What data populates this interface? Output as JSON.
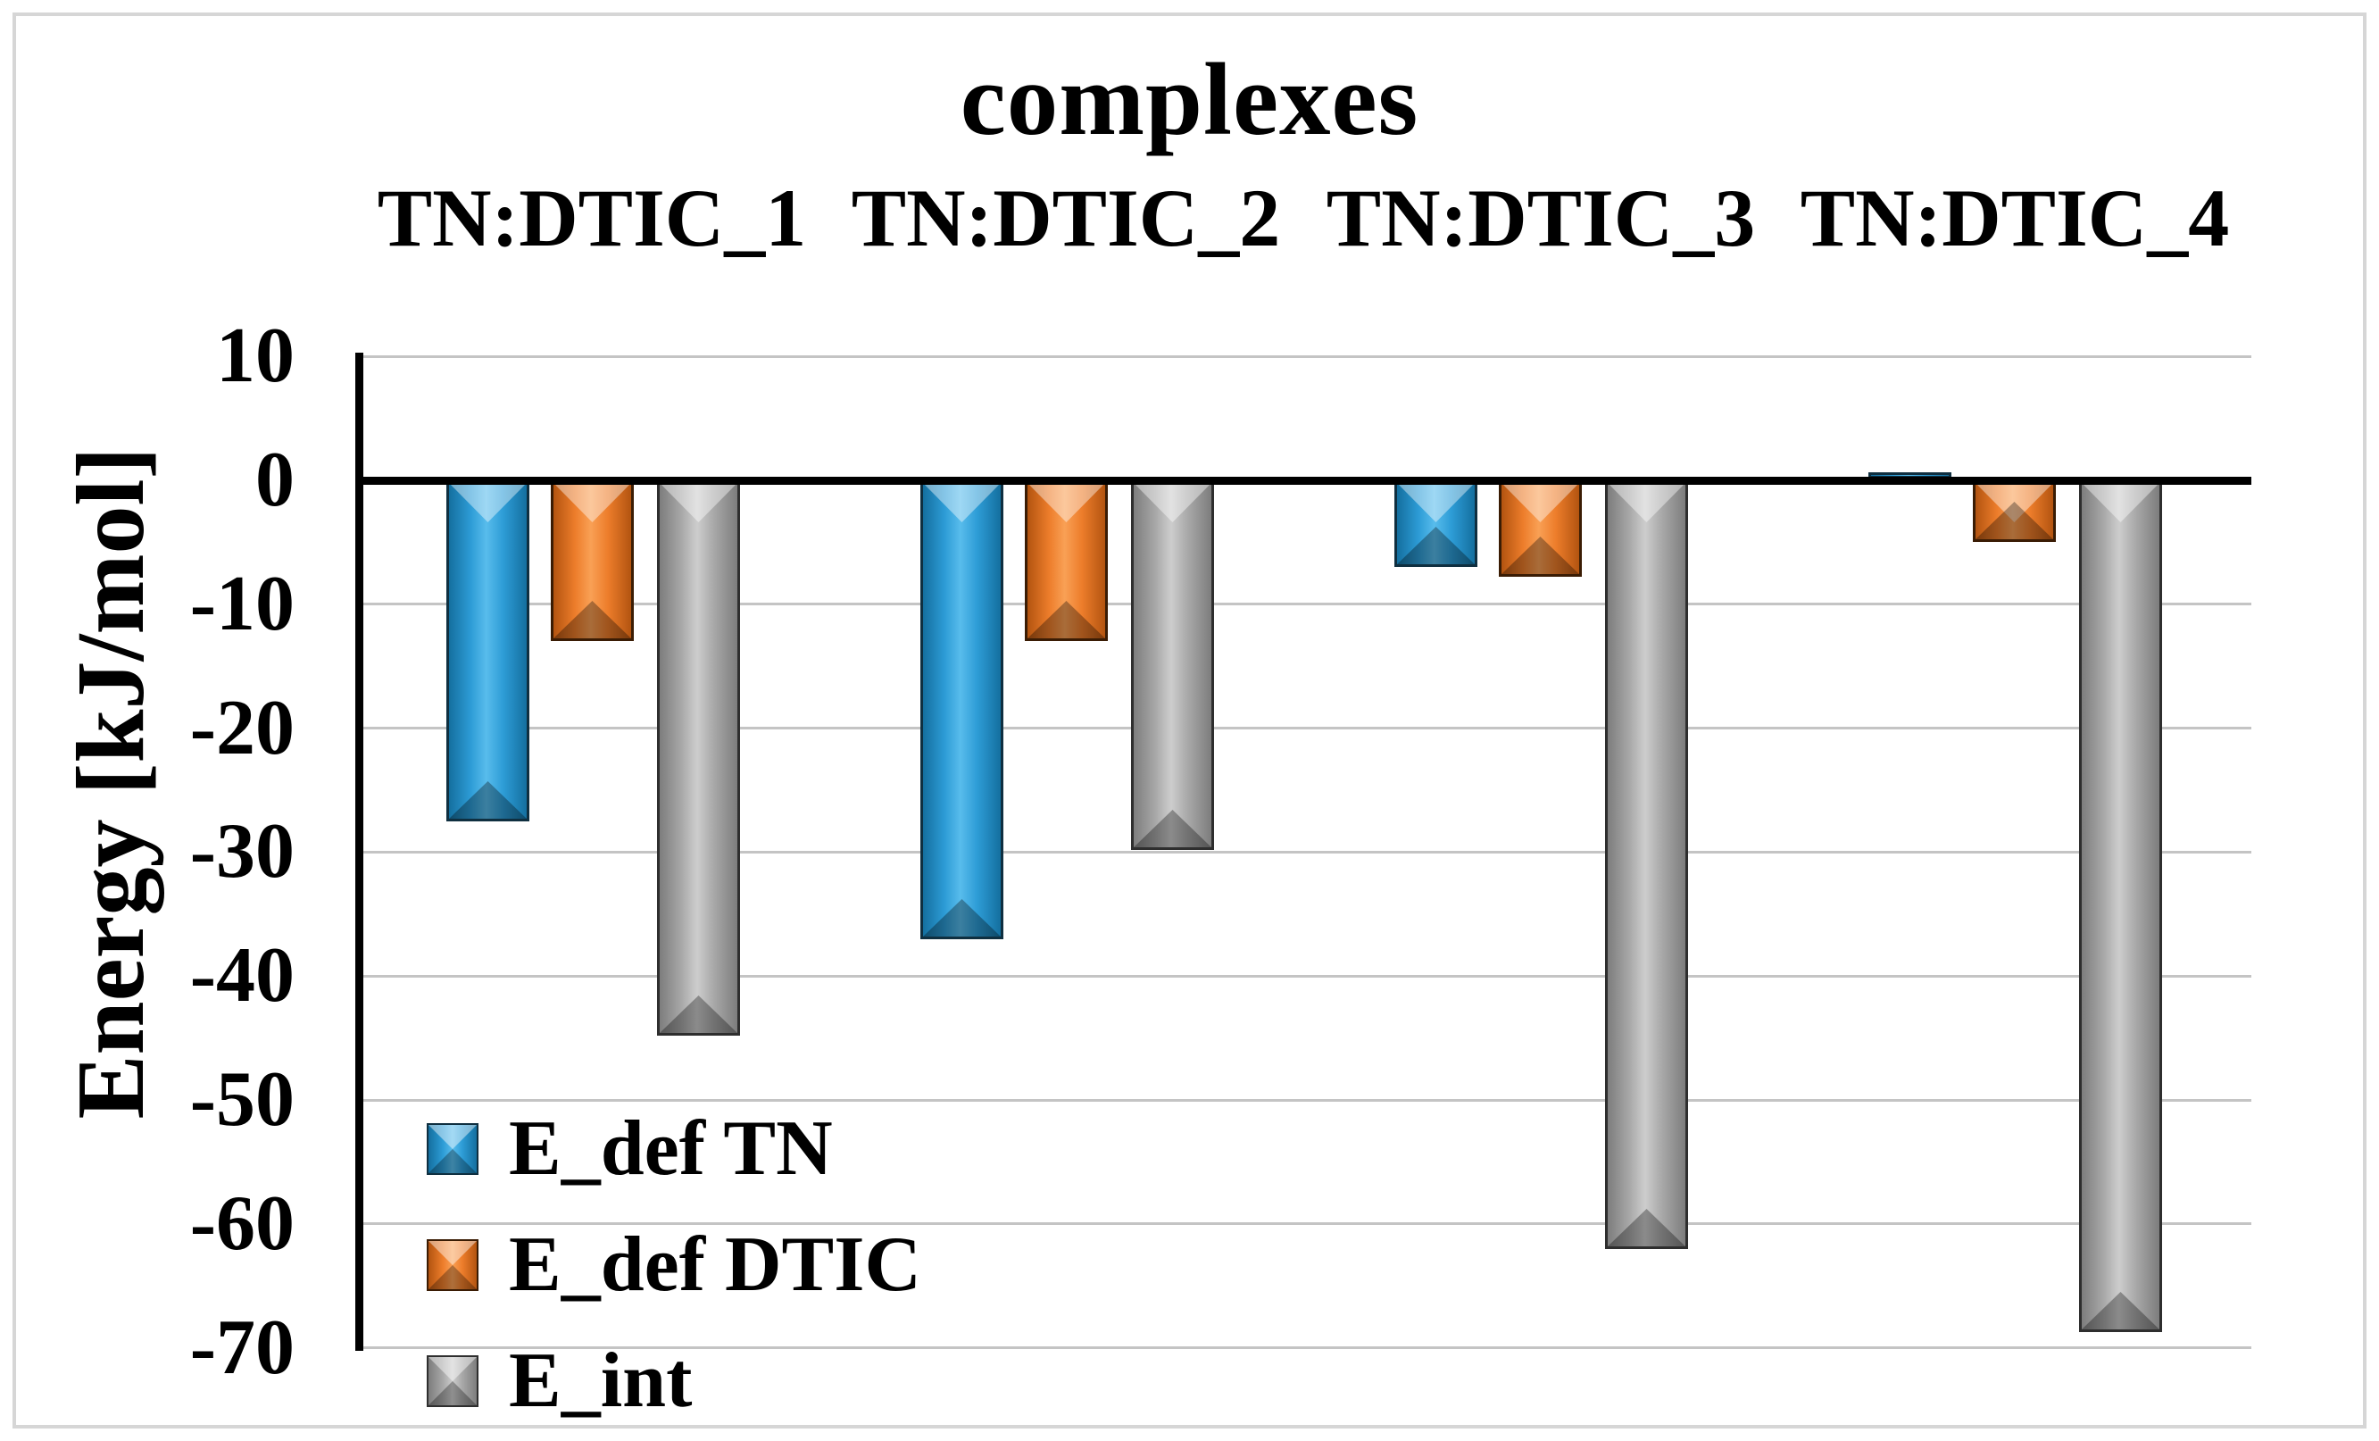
{
  "figure": {
    "background": "#ffffff",
    "border_color": "#d6d6d6"
  },
  "chart_data": {
    "type": "bar",
    "title": "complexes",
    "categories": [
      "TN:DTIC_1",
      "TN:DTIC_2",
      "TN:DTIC_3",
      "TN:DTIC_4"
    ],
    "series": [
      {
        "name": "E_def TN",
        "color": "#2d9cd6",
        "color_light": "#58bcec",
        "color_dark": "#146f9f",
        "outline": "#0f2f40",
        "values": [
          -27.5,
          -37,
          -7,
          0.5
        ]
      },
      {
        "name": "E_def DTIC",
        "color": "#ed7d2b",
        "color_light": "#f9a055",
        "color_dark": "#b35410",
        "outline": "#3a1c04",
        "values": [
          -13,
          -13,
          -7.8,
          -5
        ]
      },
      {
        "name": "E_int",
        "color": "#a8a8a8",
        "color_light": "#cdcdcd",
        "color_dark": "#7d7d7d",
        "outline": "#2e2e2e",
        "values": [
          -44.8,
          -29.8,
          -62,
          -68.7
        ]
      }
    ],
    "xlabel": "",
    "ylabel": "Energy [kJ/mol]",
    "ylim": [
      -70,
      10
    ],
    "yticks": [
      10,
      0,
      -10,
      -20,
      -30,
      -40,
      -50,
      -60,
      -70
    ],
    "grid": true,
    "gridline_color": "#c4c4c4",
    "axis_color": "#000000",
    "legend_position": "inside-bottom-left"
  }
}
